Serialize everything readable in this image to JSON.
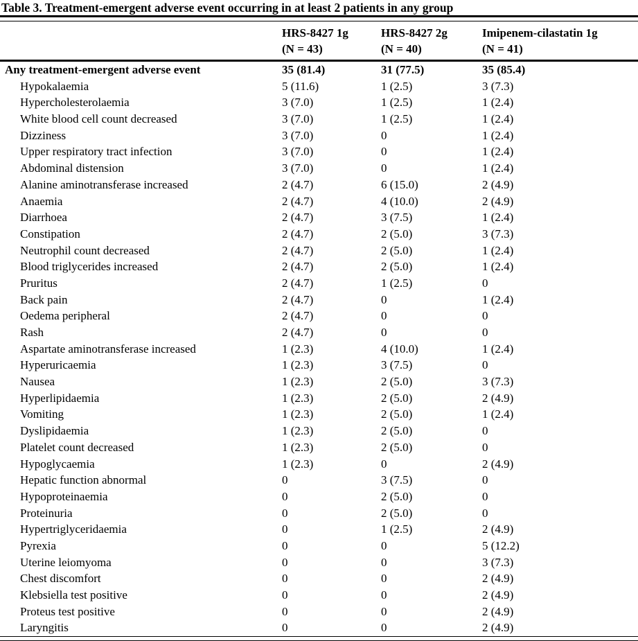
{
  "title": "Table 3. Treatment-emergent adverse event occurring in at least 2 patients in any group",
  "table": {
    "columns": [
      {
        "name": "HRS-8427 1g",
        "n": "(N = 43)"
      },
      {
        "name": "HRS-8427 2g",
        "n": "(N = 40)"
      },
      {
        "name": "Imipenem-cilastatin 1g",
        "n": "(N = 41)"
      }
    ],
    "rows": [
      {
        "label": "Any treatment-emergent adverse event",
        "bold": true,
        "values": [
          "35 (81.4)",
          "31 (77.5)",
          "35 (85.4)"
        ]
      },
      {
        "label": "Hypokalaemia",
        "bold": false,
        "values": [
          "5 (11.6)",
          "1 (2.5)",
          "3 (7.3)"
        ]
      },
      {
        "label": "Hypercholesterolaemia",
        "bold": false,
        "values": [
          "3 (7.0)",
          "1 (2.5)",
          "1 (2.4)"
        ]
      },
      {
        "label": "White blood cell count decreased",
        "bold": false,
        "values": [
          "3 (7.0)",
          "1 (2.5)",
          "1 (2.4)"
        ]
      },
      {
        "label": "Dizziness",
        "bold": false,
        "values": [
          "3 (7.0)",
          "0",
          "1 (2.4)"
        ]
      },
      {
        "label": "Upper respiratory tract infection",
        "bold": false,
        "values": [
          "3 (7.0)",
          "0",
          "1 (2.4)"
        ]
      },
      {
        "label": "Abdominal distension",
        "bold": false,
        "values": [
          "3 (7.0)",
          "0",
          "1 (2.4)"
        ]
      },
      {
        "label": "Alanine aminotransferase increased",
        "bold": false,
        "values": [
          "2 (4.7)",
          "6 (15.0)",
          "2 (4.9)"
        ]
      },
      {
        "label": "Anaemia",
        "bold": false,
        "values": [
          "2 (4.7)",
          "4 (10.0)",
          "2 (4.9)"
        ]
      },
      {
        "label": "Diarrhoea",
        "bold": false,
        "values": [
          "2 (4.7)",
          "3 (7.5)",
          "1 (2.4)"
        ]
      },
      {
        "label": "Constipation",
        "bold": false,
        "values": [
          "2 (4.7)",
          "2 (5.0)",
          "3 (7.3)"
        ]
      },
      {
        "label": "Neutrophil count decreased",
        "bold": false,
        "values": [
          "2 (4.7)",
          "2 (5.0)",
          "1 (2.4)"
        ]
      },
      {
        "label": "Blood triglycerides increased",
        "bold": false,
        "values": [
          "2 (4.7)",
          "2 (5.0)",
          "1 (2.4)"
        ]
      },
      {
        "label": "Pruritus",
        "bold": false,
        "values": [
          "2 (4.7)",
          "1 (2.5)",
          "0"
        ]
      },
      {
        "label": "Back pain",
        "bold": false,
        "values": [
          "2 (4.7)",
          "0",
          "1 (2.4)"
        ]
      },
      {
        "label": "Oedema peripheral",
        "bold": false,
        "values": [
          "2 (4.7)",
          "0",
          "0"
        ]
      },
      {
        "label": "Rash",
        "bold": false,
        "values": [
          "2 (4.7)",
          "0",
          "0"
        ]
      },
      {
        "label": "Aspartate aminotransferase increased",
        "bold": false,
        "values": [
          "1 (2.3)",
          "4 (10.0)",
          "1 (2.4)"
        ]
      },
      {
        "label": "Hyperuricaemia",
        "bold": false,
        "values": [
          "1 (2.3)",
          "3 (7.5)",
          "0"
        ]
      },
      {
        "label": "Nausea",
        "bold": false,
        "values": [
          "1 (2.3)",
          "2 (5.0)",
          "3 (7.3)"
        ]
      },
      {
        "label": "Hyperlipidaemia",
        "bold": false,
        "values": [
          "1 (2.3)",
          "2 (5.0)",
          "2 (4.9)"
        ]
      },
      {
        "label": "Vomiting",
        "bold": false,
        "values": [
          "1 (2.3)",
          "2 (5.0)",
          "1 (2.4)"
        ]
      },
      {
        "label": "Dyslipidaemia",
        "bold": false,
        "values": [
          "1 (2.3)",
          "2 (5.0)",
          "0"
        ]
      },
      {
        "label": "Platelet count decreased",
        "bold": false,
        "values": [
          "1 (2.3)",
          "2 (5.0)",
          "0"
        ]
      },
      {
        "label": "Hypoglycaemia",
        "bold": false,
        "values": [
          "1 (2.3)",
          "0",
          "2 (4.9)"
        ]
      },
      {
        "label": "Hepatic function abnormal",
        "bold": false,
        "values": [
          "0",
          "3 (7.5)",
          "0"
        ]
      },
      {
        "label": "Hypoproteinaemia",
        "bold": false,
        "values": [
          "0",
          "2 (5.0)",
          "0"
        ]
      },
      {
        "label": "Proteinuria",
        "bold": false,
        "values": [
          "0",
          "2 (5.0)",
          "0"
        ]
      },
      {
        "label": "Hypertriglyceridaemia",
        "bold": false,
        "values": [
          "0",
          "1 (2.5)",
          "2 (4.9)"
        ]
      },
      {
        "label": "Pyrexia",
        "bold": false,
        "values": [
          "0",
          "0",
          "5 (12.2)"
        ]
      },
      {
        "label": "Uterine leiomyoma",
        "bold": false,
        "values": [
          "0",
          "0",
          "3 (7.3)"
        ]
      },
      {
        "label": "Chest discomfort",
        "bold": false,
        "values": [
          "0",
          "0",
          "2 (4.9)"
        ]
      },
      {
        "label": "Klebsiella test positive",
        "bold": false,
        "values": [
          "0",
          "0",
          "2 (4.9)"
        ]
      },
      {
        "label": "Proteus test positive",
        "bold": false,
        "values": [
          "0",
          "0",
          "2 (4.9)"
        ]
      },
      {
        "label": "Laryngitis",
        "bold": false,
        "values": [
          "0",
          "0",
          "2 (4.9)"
        ]
      }
    ]
  }
}
